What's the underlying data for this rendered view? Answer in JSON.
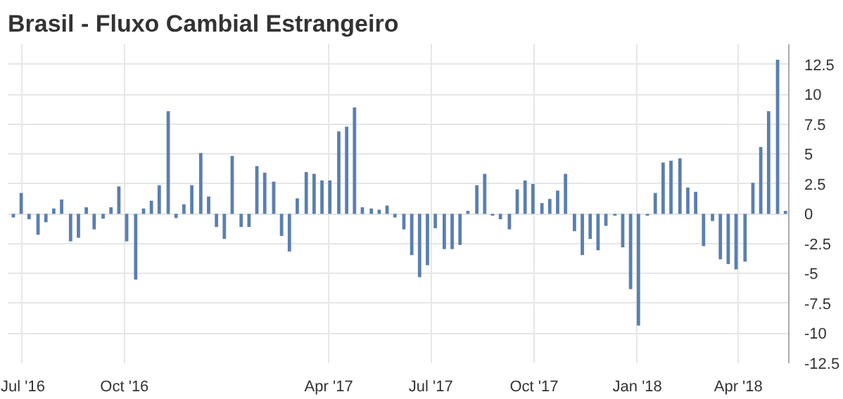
{
  "chart_data": {
    "type": "bar",
    "title": "Brasil - Fluxo Cambial Estrangeiro",
    "x": [
      "2016-06-24",
      "2016-07-01",
      "2016-07-08",
      "2016-07-16",
      "2016-07-23",
      "2016-07-30",
      "2016-08-06",
      "2016-08-14",
      "2016-08-21",
      "2016-08-28",
      "2016-09-04",
      "2016-09-12",
      "2016-09-19",
      "2016-09-26",
      "2016-10-03",
      "2016-10-11",
      "2016-10-18",
      "2016-10-25",
      "2016-11-01",
      "2016-11-09",
      "2016-11-16",
      "2016-11-23",
      "2016-11-30",
      "2016-12-08",
      "2016-12-15",
      "2016-12-22",
      "2016-12-29",
      "2017-01-05",
      "2017-01-13",
      "2017-01-20",
      "2017-01-27",
      "2017-02-03",
      "2017-02-11",
      "2017-02-18",
      "2017-02-25",
      "2017-03-04",
      "2017-03-12",
      "2017-03-19",
      "2017-03-26",
      "2017-04-02",
      "2017-04-10",
      "2017-04-17",
      "2017-04-24",
      "2017-05-01",
      "2017-05-09",
      "2017-05-16",
      "2017-05-23",
      "2017-05-30",
      "2017-06-07",
      "2017-06-14",
      "2017-06-21",
      "2017-06-28",
      "2017-07-05",
      "2017-07-13",
      "2017-07-20",
      "2017-07-27",
      "2017-08-03",
      "2017-08-11",
      "2017-08-18",
      "2017-08-25",
      "2017-09-01",
      "2017-09-09",
      "2017-09-16",
      "2017-09-23",
      "2017-09-30",
      "2017-10-08",
      "2017-10-15",
      "2017-10-22",
      "2017-10-29",
      "2017-11-06",
      "2017-11-13",
      "2017-11-20",
      "2017-11-27",
      "2017-12-04",
      "2017-12-12",
      "2017-12-19",
      "2017-12-26",
      "2018-01-02",
      "2018-01-10",
      "2018-01-17",
      "2018-01-24",
      "2018-01-31",
      "2018-02-08",
      "2018-02-15",
      "2018-02-22",
      "2018-03-01",
      "2018-03-09",
      "2018-03-16",
      "2018-03-23",
      "2018-03-30",
      "2018-04-07",
      "2018-04-14",
      "2018-04-21",
      "2018-04-28",
      "2018-05-06",
      "2018-05-13"
    ],
    "values": [
      -0.3,
      1.75,
      -0.45,
      -1.75,
      -0.7,
      0.45,
      1.2,
      -2.3,
      -2.0,
      0.55,
      -1.3,
      -0.4,
      0.55,
      2.3,
      -2.3,
      -5.5,
      0.45,
      1.1,
      2.4,
      8.6,
      -0.35,
      0.8,
      2.4,
      5.1,
      1.45,
      -1.1,
      -2.1,
      4.85,
      -1.1,
      -1.1,
      4.0,
      3.45,
      2.7,
      -1.85,
      -3.15,
      1.3,
      3.5,
      3.35,
      2.8,
      2.8,
      6.9,
      7.3,
      8.9,
      0.55,
      0.45,
      0.35,
      0.7,
      -0.3,
      -1.3,
      -3.45,
      -5.3,
      -4.3,
      -1.2,
      -2.95,
      -2.95,
      -2.6,
      0.25,
      2.4,
      3.35,
      -0.15,
      -0.45,
      -1.3,
      2.05,
      2.8,
      2.5,
      0.9,
      1.25,
      1.95,
      3.35,
      -1.45,
      -3.45,
      -2.1,
      -3.05,
      -1.0,
      -0.15,
      -2.8,
      -6.3,
      -9.35,
      -0.15,
      1.75,
      4.3,
      4.45,
      4.65,
      2.2,
      1.85,
      -2.7,
      -0.6,
      -3.8,
      -4.2,
      -4.65,
      -4.0,
      2.6,
      5.6,
      8.6,
      12.9,
      0.25
    ],
    "color": "#5b7fae",
    "xlim": [
      "2016-06-19",
      "2018-05-16"
    ],
    "xticks": [
      {
        "value": "2016-07-01",
        "label": "Jul '16"
      },
      {
        "value": "2016-10-01",
        "label": "Oct '16"
      },
      {
        "value": "2017-04-01",
        "label": "Apr '17"
      },
      {
        "value": "2017-07-01",
        "label": "Jul '17"
      },
      {
        "value": "2017-10-01",
        "label": "Oct '17"
      },
      {
        "value": "2018-01-01",
        "label": "Jan '18"
      },
      {
        "value": "2018-04-01",
        "label": "Apr '18"
      }
    ],
    "ylim": [
      -12.5,
      14.2
    ],
    "yticks": [
      {
        "value": -12.5,
        "label": "-12.5"
      },
      {
        "value": -10,
        "label": "-10"
      },
      {
        "value": -7.5,
        "label": "-7.5"
      },
      {
        "value": -5,
        "label": "-5"
      },
      {
        "value": -2.5,
        "label": "-2.5"
      },
      0,
      {
        "value": 2.5,
        "label": "2.5"
      },
      5,
      {
        "value": 7.5,
        "label": "7.5"
      },
      10,
      {
        "value": 12.5,
        "label": "12.5"
      }
    ],
    "grid": true
  }
}
